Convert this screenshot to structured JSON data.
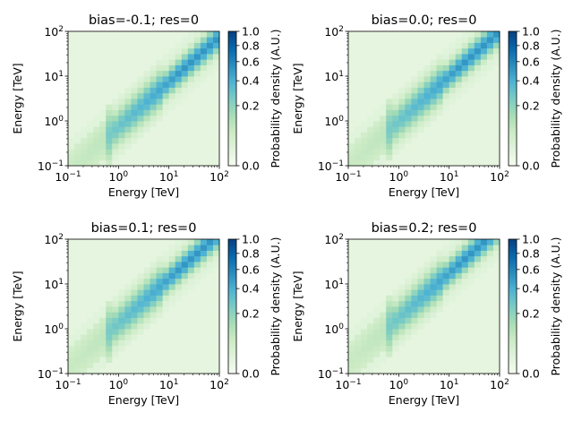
{
  "chart_data": [
    {
      "type": "heatmap",
      "title": "bias=-0.1; res=0",
      "xlabel": "Energy [TeV]",
      "ylabel": "Energy [TeV]",
      "colorbar_label": "Probability density (A.U.)",
      "xscale": "log",
      "yscale": "log",
      "xlim": [
        0.1,
        100
      ],
      "ylim": [
        0.1,
        100
      ],
      "x_ticks": [
        {
          "base": "10",
          "exp": "−1"
        },
        {
          "base": "10",
          "exp": "0"
        },
        {
          "base": "10",
          "exp": "1"
        },
        {
          "base": "10",
          "exp": "2"
        }
      ],
      "y_ticks": [
        {
          "base": "10",
          "exp": "−1"
        },
        {
          "base": "10",
          "exp": "0"
        },
        {
          "base": "10",
          "exp": "1"
        },
        {
          "base": "10",
          "exp": "2"
        }
      ],
      "colorbar_ticks": [
        "0.0",
        "0.2",
        "0.4",
        "0.6",
        "0.8",
        "1.0"
      ],
      "colorbar_tick_values": [
        0.0,
        0.2,
        0.4,
        0.6,
        0.8,
        1.0
      ],
      "colorbar_scale": "power-0.5",
      "colormap": "GnBu",
      "bins_per_decade": 8,
      "bias": -0.1,
      "diagonal_peak": 0.5
    },
    {
      "type": "heatmap",
      "title": "bias=0.0; res=0",
      "xlabel": "Energy [TeV]",
      "ylabel": "Energy [TeV]",
      "colorbar_label": "Probability density (A.U.)",
      "xscale": "log",
      "yscale": "log",
      "xlim": [
        0.1,
        100
      ],
      "ylim": [
        0.1,
        100
      ],
      "x_ticks": [
        {
          "base": "10",
          "exp": "−1"
        },
        {
          "base": "10",
          "exp": "0"
        },
        {
          "base": "10",
          "exp": "1"
        },
        {
          "base": "10",
          "exp": "2"
        }
      ],
      "y_ticks": [
        {
          "base": "10",
          "exp": "−1"
        },
        {
          "base": "10",
          "exp": "0"
        },
        {
          "base": "10",
          "exp": "1"
        },
        {
          "base": "10",
          "exp": "2"
        }
      ],
      "colorbar_ticks": [
        "0.0",
        "0.2",
        "0.4",
        "0.6",
        "0.8",
        "1.0"
      ],
      "colorbar_tick_values": [
        0.0,
        0.2,
        0.4,
        0.6,
        0.8,
        1.0
      ],
      "colorbar_scale": "power-0.5",
      "colormap": "GnBu",
      "bins_per_decade": 8,
      "bias": 0.0,
      "diagonal_peak": 0.5
    },
    {
      "type": "heatmap",
      "title": "bias=0.1; res=0",
      "xlabel": "Energy [TeV]",
      "ylabel": "Energy [TeV]",
      "colorbar_label": "Probability density (A.U.)",
      "xscale": "log",
      "yscale": "log",
      "xlim": [
        0.1,
        100
      ],
      "ylim": [
        0.1,
        100
      ],
      "x_ticks": [
        {
          "base": "10",
          "exp": "−1"
        },
        {
          "base": "10",
          "exp": "0"
        },
        {
          "base": "10",
          "exp": "1"
        },
        {
          "base": "10",
          "exp": "2"
        }
      ],
      "y_ticks": [
        {
          "base": "10",
          "exp": "−1"
        },
        {
          "base": "10",
          "exp": "0"
        },
        {
          "base": "10",
          "exp": "1"
        },
        {
          "base": "10",
          "exp": "2"
        }
      ],
      "colorbar_ticks": [
        "0.0",
        "0.2",
        "0.4",
        "0.6",
        "0.8",
        "1.0"
      ],
      "colorbar_tick_values": [
        0.0,
        0.2,
        0.4,
        0.6,
        0.8,
        1.0
      ],
      "colorbar_scale": "power-0.5",
      "colormap": "GnBu",
      "bins_per_decade": 8,
      "bias": 0.1,
      "diagonal_peak": 0.5
    },
    {
      "type": "heatmap",
      "title": "bias=0.2; res=0",
      "xlabel": "Energy [TeV]",
      "ylabel": "Energy [TeV]",
      "colorbar_label": "Probability density (A.U.)",
      "xscale": "log",
      "yscale": "log",
      "xlim": [
        0.1,
        100
      ],
      "ylim": [
        0.1,
        100
      ],
      "x_ticks": [
        {
          "base": "10",
          "exp": "−1"
        },
        {
          "base": "10",
          "exp": "0"
        },
        {
          "base": "10",
          "exp": "1"
        },
        {
          "base": "10",
          "exp": "2"
        }
      ],
      "y_ticks": [
        {
          "base": "10",
          "exp": "−1"
        },
        {
          "base": "10",
          "exp": "0"
        },
        {
          "base": "10",
          "exp": "1"
        },
        {
          "base": "10",
          "exp": "2"
        }
      ],
      "colorbar_ticks": [
        "0.0",
        "0.2",
        "0.4",
        "0.6",
        "0.8",
        "1.0"
      ],
      "colorbar_tick_values": [
        0.0,
        0.2,
        0.4,
        0.6,
        0.8,
        1.0
      ],
      "colorbar_scale": "power-0.5",
      "colormap": "GnBu",
      "bins_per_decade": 8,
      "bias": 0.2,
      "diagonal_peak": 0.5
    }
  ]
}
